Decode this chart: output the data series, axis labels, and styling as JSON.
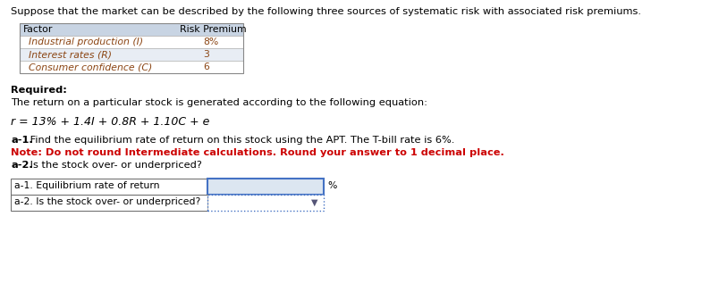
{
  "title_text": "Suppose that the market can be described by the following three sources of systematic risk with associated risk premiums.",
  "table_header_col1": "Factor",
  "table_header_col2": "Risk Premium",
  "table_rows": [
    [
      "Industrial production (I)",
      "8%"
    ],
    [
      "Interest rates (R)",
      "3"
    ],
    [
      "Consumer confidence (C)",
      "6"
    ]
  ],
  "required_label": "Required:",
  "required_body": "The return on a particular stock is generated according to the following equation:",
  "equation": "r = 13% + 1.4I + 0.8R + 1.10C + e",
  "inst1_bold": "a-1.",
  "inst1_text": " Find the equilibrium rate of return on this stock using the APT. The T-bill rate is 6%.",
  "note_red": "Note: Do not round Intermediate calculations. Round your answer to 1 decimal place.",
  "inst2_bold": "a-2.",
  "inst2_text": " Is the stock over- or underpriced?",
  "answer_row1_label": "a-1. Equilibrium rate of return",
  "answer_row1_suffix": "%",
  "answer_row2_label": "a-2. Is the stock over- or underpriced?",
  "bg_color": "#ffffff",
  "table_header_bg": "#c8d4e3",
  "table_row1_bg": "#ffffff",
  "table_row2_bg": "#e8edf4",
  "table_row3_bg": "#ffffff",
  "table_text_color": "#8B4513",
  "table_header_text": "#000000",
  "text_color": "#000000",
  "red_color": "#cc0000",
  "answer_input_fill": "#dce6f1",
  "answer_input_border": "#4472C4",
  "answer_dropdown_border": "#4472C4"
}
